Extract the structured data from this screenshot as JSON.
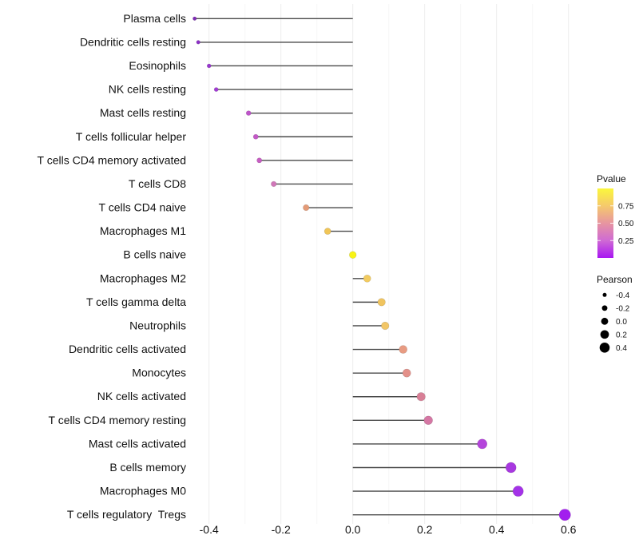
{
  "chart_data": {
    "type": "lollipop",
    "orientation": "horizontal",
    "title": "",
    "xlabel": "",
    "ylabel": "",
    "xlim": [
      -0.47,
      0.63
    ],
    "x_tick_labels": [
      "-0.4",
      "-0.2",
      "0.0",
      "0.2",
      "0.4",
      "0.6"
    ],
    "x_tick_values": [
      -0.4,
      -0.2,
      0.0,
      0.2,
      0.4,
      0.6
    ],
    "x_minor_tick_values": [
      -0.3,
      -0.1,
      0.1,
      0.3,
      0.5
    ],
    "grid": "vertical-only",
    "rows": [
      {
        "label": "Plasma cells",
        "pearson": -0.44,
        "color": "#7F2DB4"
      },
      {
        "label": "Dendritic cells resting",
        "pearson": -0.43,
        "color": "#8C31C6"
      },
      {
        "label": "Eosinophils",
        "pearson": -0.4,
        "color": "#9836CE"
      },
      {
        "label": "NK cells resting",
        "pearson": -0.38,
        "color": "#A23CD4"
      },
      {
        "label": "Mast cells resting",
        "pearson": -0.29,
        "color": "#BE53CA"
      },
      {
        "label": "T cells follicular helper",
        "pearson": -0.27,
        "color": "#C359C7"
      },
      {
        "label": "T cells CD4 memory activated",
        "pearson": -0.26,
        "color": "#C75EC3"
      },
      {
        "label": "T cells CD8",
        "pearson": -0.22,
        "color": "#D077B8"
      },
      {
        "label": "T cells CD4 naive",
        "pearson": -0.13,
        "color": "#E49B77"
      },
      {
        "label": "Macrophages M1",
        "pearson": -0.07,
        "color": "#F0C557"
      },
      {
        "label": "B cells naive",
        "pearson": 0.0,
        "color": "#F8F316"
      },
      {
        "label": "Macrophages M2",
        "pearson": 0.04,
        "color": "#F2CB60"
      },
      {
        "label": "T cells gamma delta",
        "pearson": 0.08,
        "color": "#F0C45F"
      },
      {
        "label": "Neutrophils",
        "pearson": 0.09,
        "color": "#F2C666"
      },
      {
        "label": "Dendritic cells activated",
        "pearson": 0.14,
        "color": "#E89B82"
      },
      {
        "label": "Monocytes",
        "pearson": 0.15,
        "color": "#E39089"
      },
      {
        "label": "NK cells activated",
        "pearson": 0.19,
        "color": "#D87F96"
      },
      {
        "label": "T cells CD4 memory resting",
        "pearson": 0.21,
        "color": "#D577A4"
      },
      {
        "label": "Mast cells activated",
        "pearson": 0.36,
        "color": "#B445DB"
      },
      {
        "label": "B cells memory",
        "pearson": 0.44,
        "color": "#A838E0"
      },
      {
        "label": "Macrophages M0",
        "pearson": 0.46,
        "color": "#A432E8"
      },
      {
        "label": "T cells regulatory  Tregs",
        "pearson": 0.59,
        "color": "#A21FEE"
      }
    ],
    "legend_pvalue": {
      "title": "Pvalue",
      "tick_labels": [
        "0.75",
        "0.50",
        "0.25"
      ],
      "tick_values": [
        0.75,
        0.5,
        0.25
      ],
      "range": [
        0,
        1
      ],
      "gradient_top_to_bottom": [
        "#FBF73C",
        "#F5C96C",
        "#E795A0",
        "#CF6AD4",
        "#A816F2"
      ]
    },
    "legend_pearson": {
      "title": "Pearson",
      "labels": [
        "-0.4",
        "-0.2",
        "0.0",
        "0.2",
        "0.4"
      ],
      "values": [
        -0.4,
        -0.2,
        0.0,
        0.2,
        0.4
      ],
      "dot_color": "#000000"
    }
  },
  "colors": {
    "background": "#FFFFFF",
    "grid_major": "#EDEDED",
    "grid_minor": "#F6F6F6",
    "stem": "#4A4A4A",
    "axis_text": "#111111",
    "legend_text": "#111111"
  }
}
